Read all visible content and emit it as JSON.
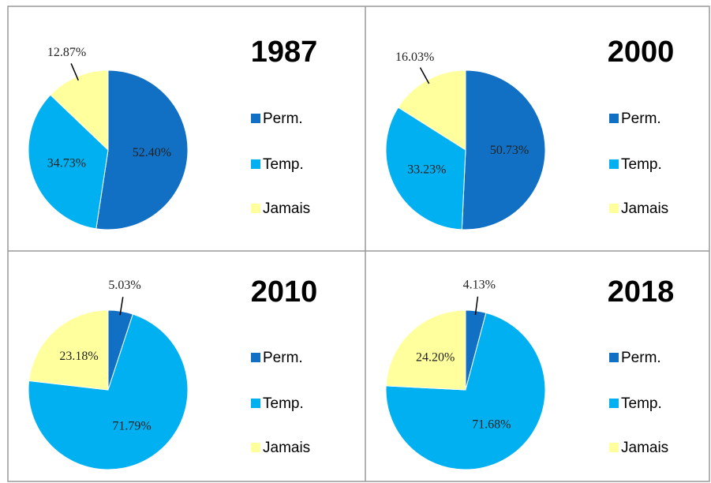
{
  "chart_data": [
    {
      "type": "pie",
      "title": "1987",
      "categories": [
        "Perm.",
        "Temp.",
        "Jamais"
      ],
      "values": [
        52.4,
        34.73,
        12.87
      ],
      "value_labels": [
        "52.40%",
        "34.73%",
        "12.87%"
      ],
      "colors": [
        "#1170c4",
        "#00b0f0",
        "#ffff9e"
      ]
    },
    {
      "type": "pie",
      "title": "2000",
      "categories": [
        "Perm.",
        "Temp.",
        "Jamais"
      ],
      "values": [
        50.73,
        33.23,
        16.03
      ],
      "value_labels": [
        "50.73%",
        "33.23%",
        "16.03%"
      ],
      "colors": [
        "#1170c4",
        "#00b0f0",
        "#ffff9e"
      ]
    },
    {
      "type": "pie",
      "title": "2010",
      "categories": [
        "Perm.",
        "Temp.",
        "Jamais"
      ],
      "values": [
        5.03,
        71.79,
        23.18
      ],
      "value_labels": [
        "5.03%",
        "71.79%",
        "23.18%"
      ],
      "colors": [
        "#1170c4",
        "#00b0f0",
        "#ffff9e"
      ]
    },
    {
      "type": "pie",
      "title": "2018",
      "categories": [
        "Perm.",
        "Temp.",
        "Jamais"
      ],
      "values": [
        4.13,
        71.68,
        24.2
      ],
      "value_labels": [
        "4.13%",
        "71.68%",
        "24.20%"
      ],
      "colors": [
        "#1170c4",
        "#00b0f0",
        "#ffff9e"
      ]
    }
  ]
}
